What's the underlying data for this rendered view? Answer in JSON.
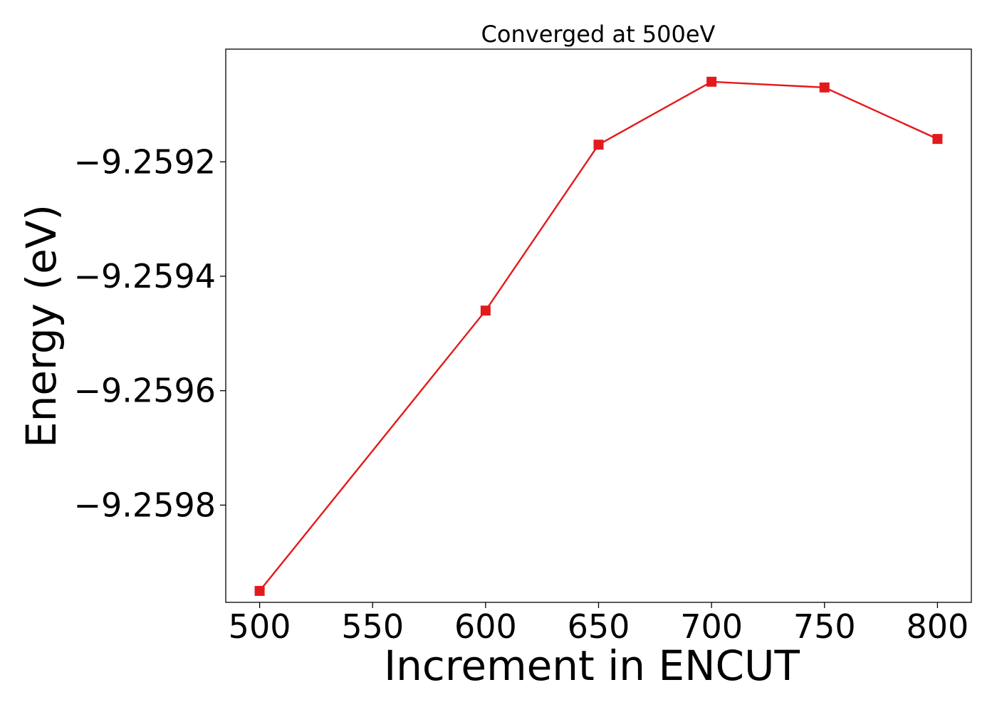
{
  "chart_data": {
    "type": "line",
    "title": "Converged at 500eV",
    "xlabel": "Increment in ENCUT",
    "ylabel": "Energy (eV)",
    "x": [
      500,
      600,
      650,
      700,
      750,
      800
    ],
    "series": [
      {
        "values": [
          -9.25995,
          -9.25946,
          -9.25917,
          -9.25906,
          -9.25907,
          -9.25916
        ],
        "color": "#e31a1c",
        "marker": "square"
      }
    ],
    "xticks": [
      500,
      550,
      600,
      650,
      700,
      750,
      800
    ],
    "xtick_labels": [
      "500",
      "550",
      "600",
      "650",
      "700",
      "750",
      "800"
    ],
    "yticks": [
      -9.2598,
      -9.2596,
      -9.2594,
      -9.2592
    ],
    "ytick_labels": [
      "−9.2598",
      "−9.2596",
      "−9.2594",
      "−9.2592"
    ],
    "xlim": [
      485,
      815
    ],
    "ylim": [
      -9.25997,
      -9.259003
    ],
    "grid": false,
    "legend": "none"
  }
}
